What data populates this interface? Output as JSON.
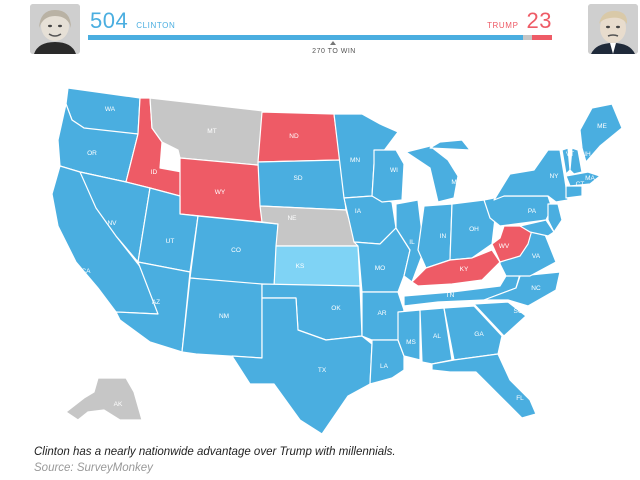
{
  "colors": {
    "clinton": "#4aaee0",
    "trump": "#ee5b66",
    "tossup": "#c6c6c6",
    "lean": "#7fd3f5",
    "bar_bg": "#dcdcdc"
  },
  "header": {
    "clinton": {
      "votes": "504",
      "name": "CLINTON",
      "avatar_icon": "clinton-portrait-icon"
    },
    "trump": {
      "votes": "23",
      "name": "TRUMP",
      "avatar_icon": "trump-portrait-icon"
    },
    "to_win": "270 TO WIN",
    "bar": {
      "clinton_votes": 504,
      "tossup_votes": 11,
      "trump_votes": 23,
      "total": 538
    }
  },
  "map": {
    "states": [
      {
        "code": "WA",
        "party": "clinton"
      },
      {
        "code": "OR",
        "party": "clinton"
      },
      {
        "code": "CA",
        "party": "clinton"
      },
      {
        "code": "ID",
        "party": "trump"
      },
      {
        "code": "NV",
        "party": "clinton"
      },
      {
        "code": "MT",
        "party": "tossup"
      },
      {
        "code": "WY",
        "party": "trump"
      },
      {
        "code": "UT",
        "party": "clinton"
      },
      {
        "code": "AZ",
        "party": "clinton"
      },
      {
        "code": "CO",
        "party": "clinton"
      },
      {
        "code": "NM",
        "party": "clinton"
      },
      {
        "code": "ND",
        "party": "trump"
      },
      {
        "code": "SD",
        "party": "clinton"
      },
      {
        "code": "NE",
        "party": "tossup"
      },
      {
        "code": "KS",
        "party": "lean"
      },
      {
        "code": "OK",
        "party": "clinton"
      },
      {
        "code": "TX",
        "party": "clinton"
      },
      {
        "code": "MN",
        "party": "clinton"
      },
      {
        "code": "IA",
        "party": "clinton"
      },
      {
        "code": "MO",
        "party": "clinton"
      },
      {
        "code": "AR",
        "party": "clinton"
      },
      {
        "code": "LA",
        "party": "clinton"
      },
      {
        "code": "WI",
        "party": "clinton"
      },
      {
        "code": "IL",
        "party": "clinton"
      },
      {
        "code": "MI",
        "party": "clinton"
      },
      {
        "code": "IN",
        "party": "clinton"
      },
      {
        "code": "OH",
        "party": "clinton"
      },
      {
        "code": "KY",
        "party": "trump"
      },
      {
        "code": "TN",
        "party": "clinton"
      },
      {
        "code": "MS",
        "party": "clinton"
      },
      {
        "code": "AL",
        "party": "clinton"
      },
      {
        "code": "GA",
        "party": "clinton"
      },
      {
        "code": "FL",
        "party": "clinton"
      },
      {
        "code": "SC",
        "party": "clinton"
      },
      {
        "code": "NC",
        "party": "clinton"
      },
      {
        "code": "VA",
        "party": "clinton"
      },
      {
        "code": "WV",
        "party": "trump"
      },
      {
        "code": "PA",
        "party": "clinton"
      },
      {
        "code": "NY",
        "party": "clinton"
      },
      {
        "code": "VT",
        "party": "clinton"
      },
      {
        "code": "NH",
        "party": "clinton"
      },
      {
        "code": "ME",
        "party": "clinton"
      },
      {
        "code": "MA",
        "party": "clinton"
      },
      {
        "code": "CT",
        "party": "clinton"
      },
      {
        "code": "NJ",
        "party": "clinton"
      },
      {
        "code": "MD",
        "party": "clinton"
      },
      {
        "code": "AK",
        "party": "tossup"
      }
    ]
  },
  "caption": "Clinton has a nearly nationwide advantage over Trump with millennials.",
  "source": "Source: SurveyMonkey"
}
